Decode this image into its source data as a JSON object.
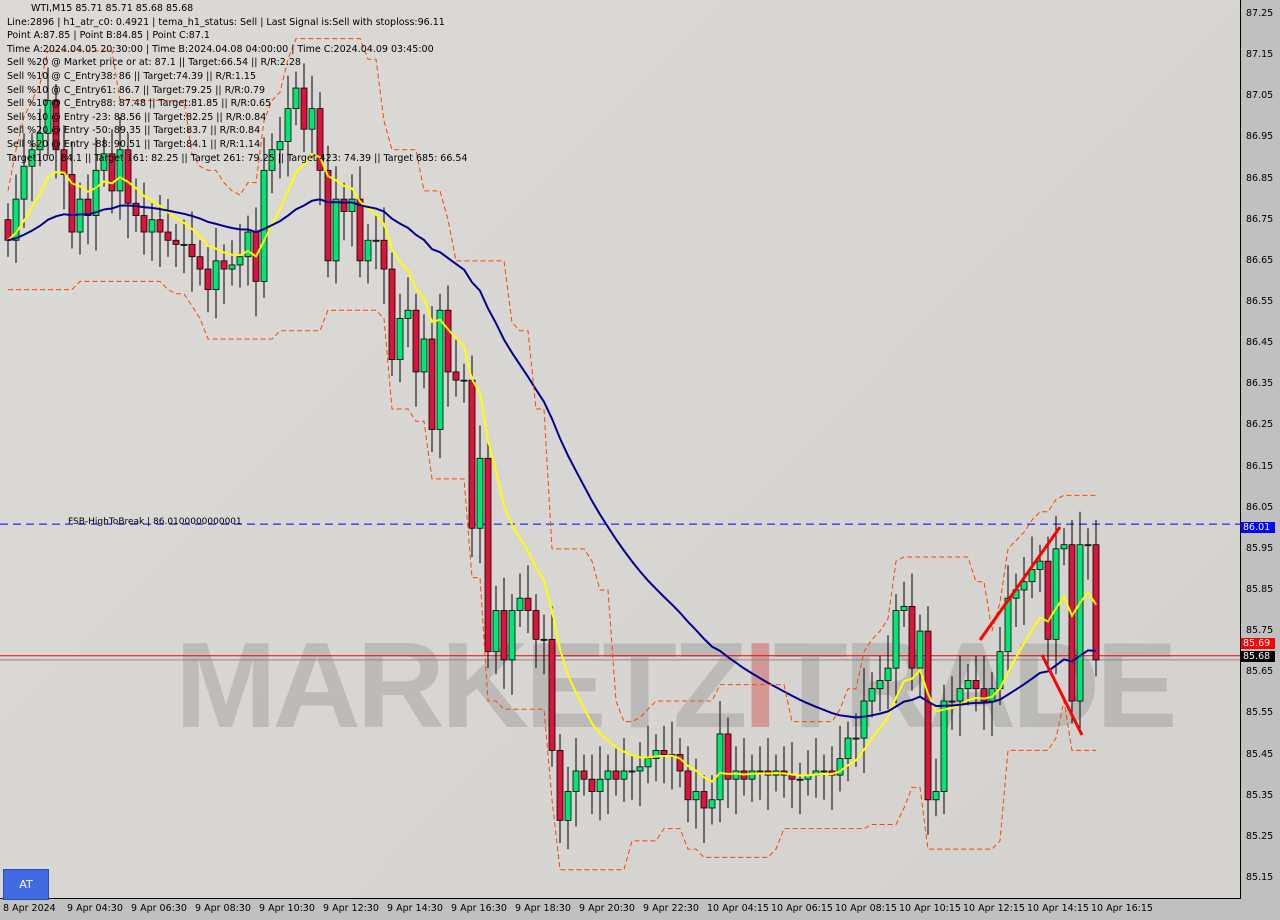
{
  "symbol_header": "WTI,M15  85.71 85.71 85.68 85.68",
  "info_lines": [
    "Line:2896 | h1_atr_c0: 0.4921 | tema_h1_status: Sell | Last Signal is:Sell with stoploss:96.11",
    "Point A:87.85 | Point B:84.85 | Point C:87.1",
    "Time A:2024.04.05 20:30:00 | Time B:2024.04.08 04:00:00 | Time C:2024.04.09 03:45:00",
    "Sell %20 @ Market price or at: 87.1 || Target:66.54 || R/R:2.28",
    "Sell %10 @ C_Entry38: 86 || Target:74.39 || R/R:1.15",
    "Sell %10 @ C_Entry61: 86.7 || Target:79.25 || R/R:0.79",
    "Sell %10 @ C_Entry88: 87.48 || Target:81.85 || R/R:0.65",
    "Sell %10 @ Entry -23: 88.56 || Target:82.25 || R/R:0.84",
    "Sell %20 @ Entry -50: 89.35 || Target:83.7 || R/R:0.84",
    "Sell %20 @ Entry -88: 90.51 || Target:84.1 || R/R:1.14",
    "Target100: 84.1 || Target 161: 82.25 || Target 261: 79.25 || Target 423: 74.39 || Target 685: 66.54"
  ],
  "fsb_label": "FSB-HighToBreak | 86.0100000000001",
  "watermark": {
    "left": "MARKETZ",
    "mid": "I",
    "right": "TRADE"
  },
  "at_button": "AT",
  "price_labels": {
    "fsb": "86.01",
    "bid": "85.69",
    "current": "85.68"
  },
  "colors": {
    "bull": "#00e676",
    "bear": "#dc143c",
    "fast_ma": "#ffff00",
    "slow_ma": "#00008b",
    "fsb_line": "#0000ff",
    "bid_line": "#ff0000",
    "envelope": "#ff4500"
  },
  "chart_data": {
    "type": "candlestick",
    "ylim": [
      85.1,
      87.28
    ],
    "y_ticks": [
      "87.25",
      "87.15",
      "87.05",
      "86.95",
      "86.85",
      "86.75",
      "86.65",
      "86.55",
      "86.45",
      "86.35",
      "86.25",
      "86.15",
      "86.05",
      "85.95",
      "85.85",
      "85.75",
      "85.65",
      "85.55",
      "85.45",
      "85.35",
      "85.25",
      "85.15"
    ],
    "x_ticks": [
      "8 Apr 2024",
      "9 Apr 04:30",
      "9 Apr 06:30",
      "9 Apr 08:30",
      "9 Apr 10:30",
      "9 Apr 12:30",
      "9 Apr 14:30",
      "9 Apr 16:30",
      "9 Apr 18:30",
      "9 Apr 20:30",
      "9 Apr 22:30",
      "10 Apr 04:15",
      "10 Apr 06:15",
      "10 Apr 08:15",
      "10 Apr 10:15",
      "10 Apr 12:15",
      "10 Apr 14:15",
      "10 Apr 16:15"
    ],
    "hlines": [
      {
        "label": "FSB-HighToBreak",
        "value": 86.01
      },
      {
        "value": 85.69
      }
    ],
    "closes": [
      86.7,
      86.8,
      86.88,
      86.92,
      86.96,
      87.04,
      86.92,
      86.86,
      86.72,
      86.8,
      86.76,
      86.87,
      86.91,
      86.82,
      86.92,
      86.79,
      86.76,
      86.72,
      86.75,
      86.72,
      86.7,
      86.69,
      86.69,
      86.66,
      86.63,
      86.58,
      86.65,
      86.63,
      86.64,
      86.66,
      86.72,
      86.6,
      86.87,
      86.92,
      86.94,
      87.02,
      87.07,
      86.97,
      87.02,
      86.87,
      86.65,
      86.8,
      86.77,
      86.8,
      86.65,
      86.7,
      86.7,
      86.63,
      86.41,
      86.51,
      86.53,
      86.38,
      86.46,
      86.24,
      86.53,
      86.38,
      86.36,
      86.36,
      86.0,
      86.17,
      85.7,
      85.8,
      85.68,
      85.8,
      85.83,
      85.8,
      85.73,
      85.73,
      85.46,
      85.29,
      85.36,
      85.41,
      85.39,
      85.36,
      85.39,
      85.41,
      85.39,
      85.41,
      85.41,
      85.42,
      85.44,
      85.46,
      85.45,
      85.45,
      85.41,
      85.34,
      85.36,
      85.32,
      85.34,
      85.5,
      85.39,
      85.41,
      85.39,
      85.41,
      85.41,
      85.4,
      85.41,
      85.4,
      85.39,
      85.39,
      85.4,
      85.41,
      85.41,
      85.4,
      85.44,
      85.49,
      85.49,
      85.58,
      85.61,
      85.63,
      85.66,
      85.8,
      85.81,
      85.66,
      85.75,
      85.34,
      85.36,
      85.58,
      85.58,
      85.61,
      85.63,
      85.61,
      85.58,
      85.61,
      85.7,
      85.83,
      85.85,
      85.87,
      85.9,
      85.92,
      85.73,
      85.95,
      85.96,
      85.58,
      85.96,
      85.96,
      85.68
    ]
  }
}
